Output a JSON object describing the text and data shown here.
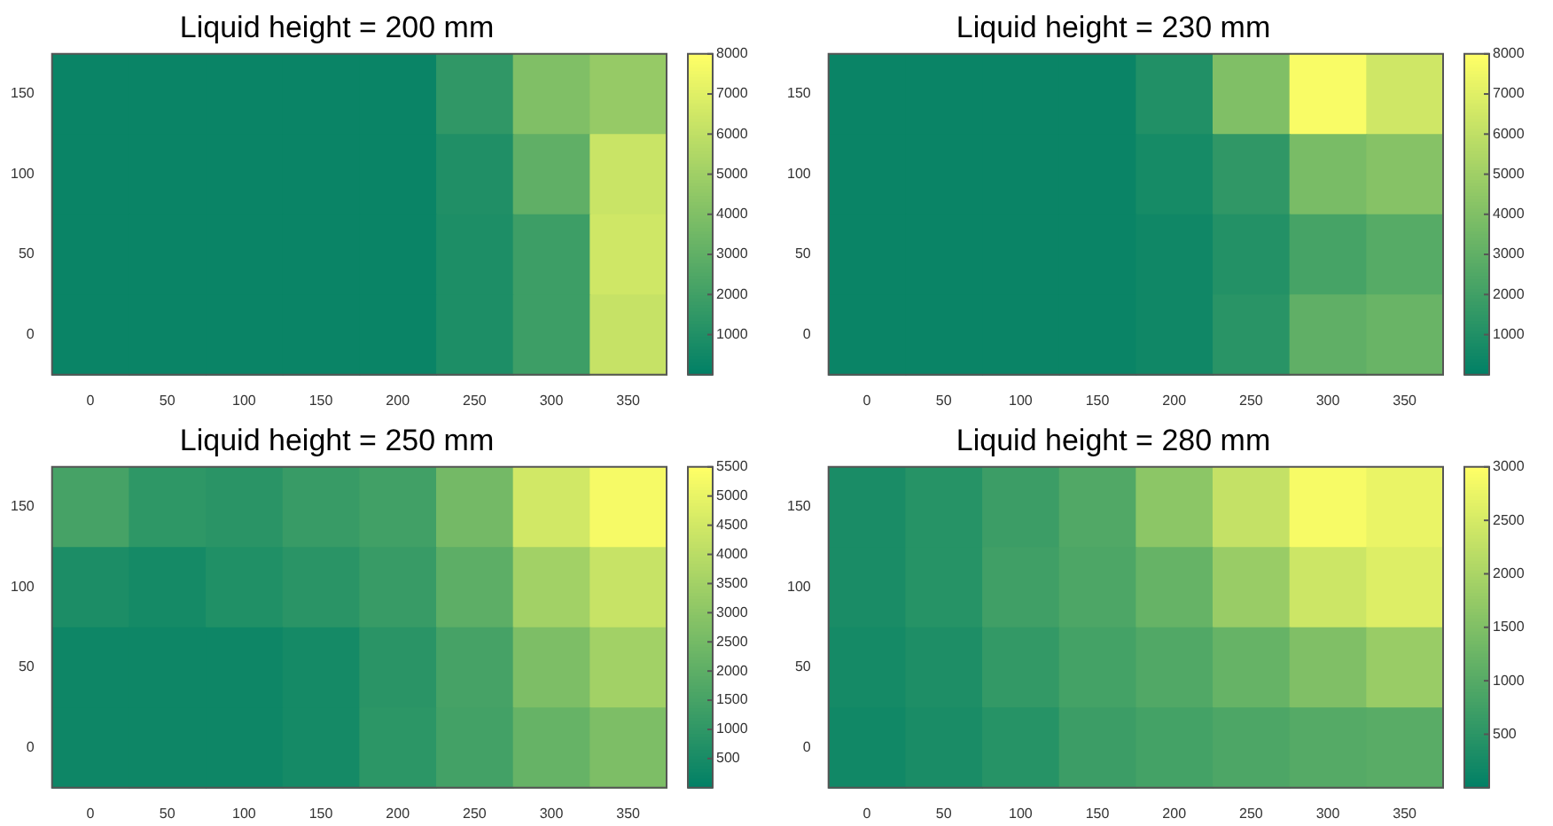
{
  "chart_data": [
    {
      "type": "heatmap",
      "title": "Liquid height = 200 mm",
      "categories": [
        "0",
        "50",
        "100",
        "150",
        "200",
        "250",
        "300",
        "350"
      ],
      "y_categories": [
        "150",
        "100",
        "50",
        "0"
      ],
      "cells": [
        [
          300,
          300,
          300,
          300,
          300,
          1500,
          4000,
          4700
        ],
        [
          300,
          300,
          300,
          300,
          300,
          1000,
          3000,
          6300
        ],
        [
          300,
          300,
          300,
          300,
          300,
          900,
          1900,
          6500
        ],
        [
          300,
          300,
          300,
          300,
          300,
          900,
          1900,
          6200
        ]
      ],
      "clim": [
        0,
        8000
      ],
      "cticks": [
        1000,
        2000,
        3000,
        4000,
        5000,
        6000,
        7000,
        8000
      ]
    },
    {
      "type": "heatmap",
      "title": "Liquid height = 230 mm",
      "categories": [
        "0",
        "50",
        "100",
        "150",
        "200",
        "250",
        "300",
        "350"
      ],
      "y_categories": [
        "150",
        "100",
        "50",
        "0"
      ],
      "cells": [
        [
          300,
          300,
          300,
          300,
          1050,
          4000,
          7800,
          6500
        ],
        [
          300,
          300,
          300,
          300,
          700,
          1500,
          3800,
          4200
        ],
        [
          300,
          300,
          300,
          300,
          500,
          1100,
          2200,
          2700
        ],
        [
          300,
          300,
          300,
          300,
          500,
          1300,
          3000,
          3300
        ]
      ],
      "clim": [
        0,
        8000
      ],
      "cticks": [
        1000,
        2000,
        3000,
        4000,
        5000,
        6000,
        7000,
        8000
      ]
    },
    {
      "type": "heatmap",
      "title": "Liquid height = 250 mm",
      "categories": [
        "0",
        "50",
        "100",
        "150",
        "200",
        "250",
        "300",
        "350"
      ],
      "y_categories": [
        "150",
        "100",
        "50",
        "0"
      ],
      "cells": [
        [
          1500,
          1000,
          900,
          1200,
          1400,
          2500,
          4500,
          5300
        ],
        [
          600,
          450,
          700,
          900,
          1200,
          2000,
          3500,
          4300
        ],
        [
          300,
          300,
          300,
          450,
          900,
          1500,
          2700,
          3500
        ],
        [
          300,
          300,
          300,
          450,
          950,
          1450,
          2200,
          2700
        ]
      ],
      "clim": [
        0,
        5500
      ],
      "cticks": [
        500,
        1000,
        1500,
        2000,
        2500,
        3000,
        3500,
        4000,
        4500,
        5000,
        5500
      ]
    },
    {
      "type": "heatmap",
      "title": "Liquid height = 280 mm",
      "categories": [
        "0",
        "50",
        "100",
        "150",
        "200",
        "250",
        "300",
        "350"
      ],
      "y_categories": [
        "150",
        "100",
        "50",
        "0"
      ],
      "cells": [
        [
          300,
          450,
          700,
          950,
          1650,
          2300,
          2900,
          2750
        ],
        [
          300,
          450,
          750,
          900,
          1200,
          1800,
          2400,
          2600
        ],
        [
          250,
          350,
          600,
          800,
          950,
          1200,
          1500,
          1800
        ],
        [
          200,
          300,
          450,
          700,
          800,
          900,
          1000,
          1050
        ]
      ],
      "clim": [
        0,
        3000
      ],
      "cticks": [
        500,
        1000,
        1500,
        2000,
        2500,
        3000
      ]
    }
  ]
}
